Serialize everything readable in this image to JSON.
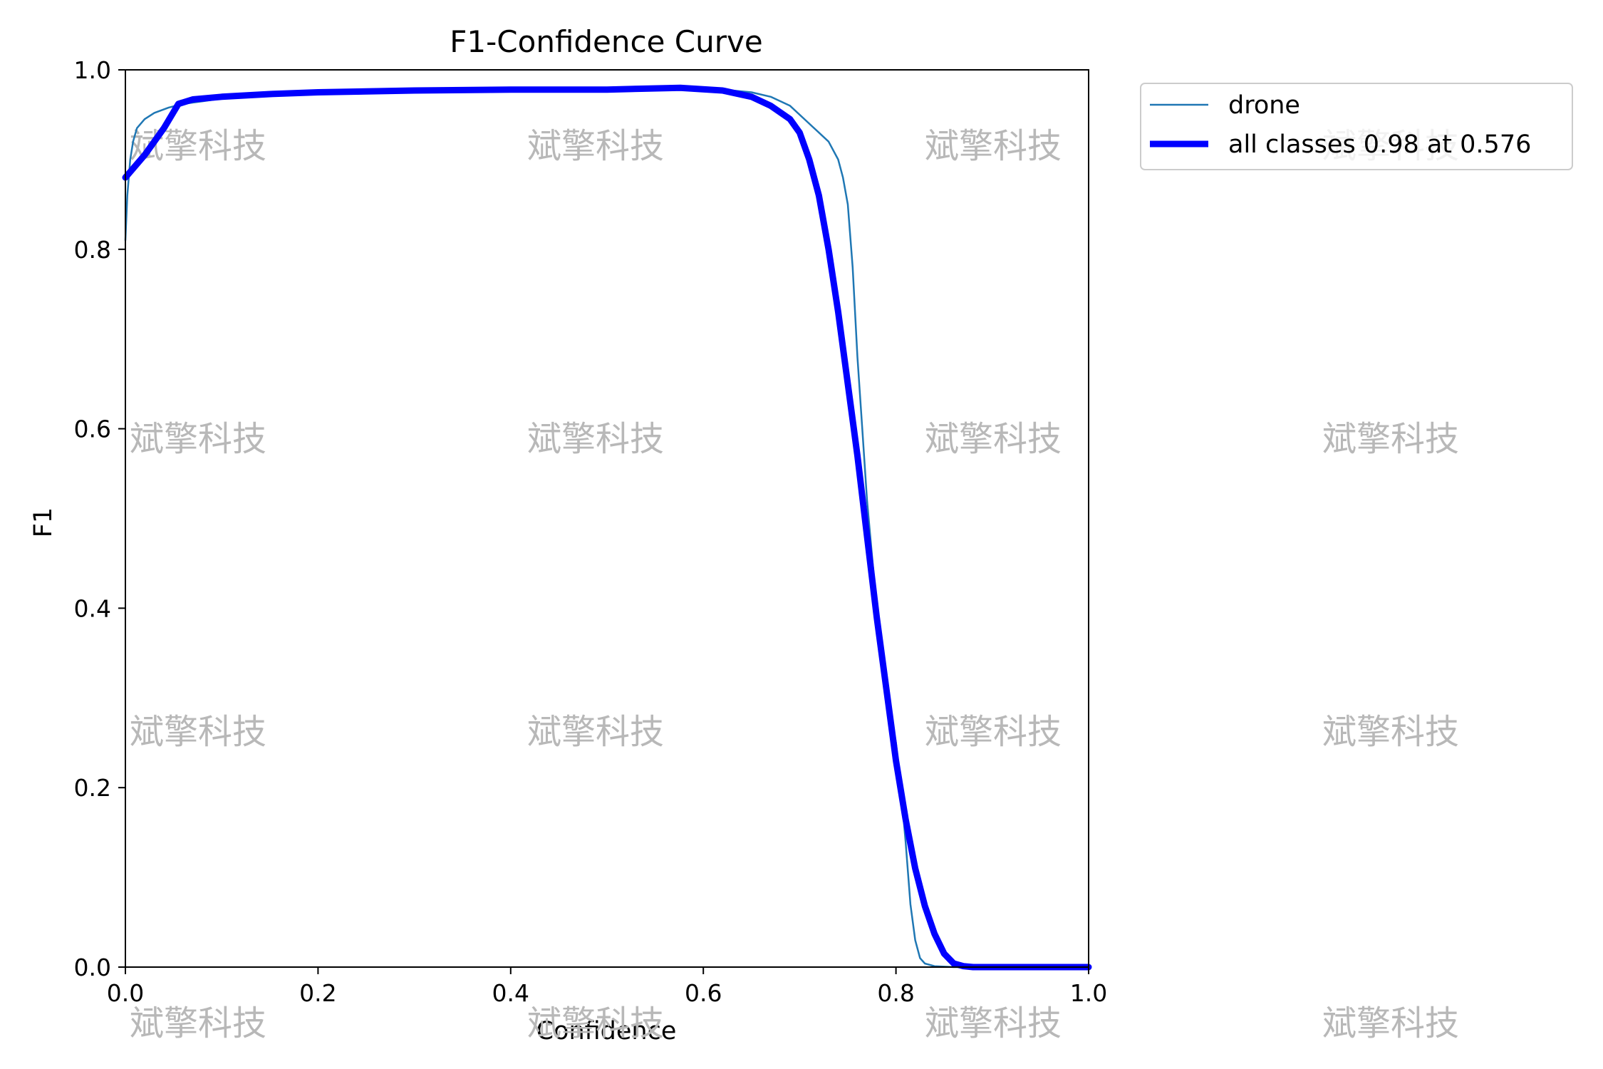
{
  "chart_data": {
    "type": "line",
    "title": "F1-Confidence Curve",
    "xlabel": "Confidence",
    "ylabel": "F1",
    "xlim": [
      0.0,
      1.0
    ],
    "ylim": [
      0.0,
      1.0
    ],
    "x_ticks": [
      "0.0",
      "0.2",
      "0.4",
      "0.6",
      "0.8",
      "1.0"
    ],
    "y_ticks": [
      "0.0",
      "0.2",
      "0.4",
      "0.6",
      "0.8",
      "1.0"
    ],
    "grid": false,
    "legend_position": "outside-top-right",
    "series": [
      {
        "name": "drone",
        "color": "#1f77b4",
        "style": "thin",
        "points": [
          [
            0.0,
            0.81
          ],
          [
            0.002,
            0.86
          ],
          [
            0.005,
            0.9
          ],
          [
            0.008,
            0.92
          ],
          [
            0.012,
            0.935
          ],
          [
            0.02,
            0.945
          ],
          [
            0.03,
            0.952
          ],
          [
            0.045,
            0.958
          ],
          [
            0.06,
            0.962
          ],
          [
            0.08,
            0.965
          ],
          [
            0.1,
            0.968
          ],
          [
            0.15,
            0.972
          ],
          [
            0.2,
            0.975
          ],
          [
            0.3,
            0.977
          ],
          [
            0.4,
            0.978
          ],
          [
            0.5,
            0.978
          ],
          [
            0.576,
            0.98
          ],
          [
            0.62,
            0.978
          ],
          [
            0.65,
            0.975
          ],
          [
            0.67,
            0.97
          ],
          [
            0.69,
            0.96
          ],
          [
            0.71,
            0.94
          ],
          [
            0.73,
            0.92
          ],
          [
            0.74,
            0.9
          ],
          [
            0.745,
            0.88
          ],
          [
            0.75,
            0.85
          ],
          [
            0.755,
            0.78
          ],
          [
            0.76,
            0.68
          ],
          [
            0.765,
            0.6
          ],
          [
            0.77,
            0.52
          ],
          [
            0.775,
            0.46
          ],
          [
            0.78,
            0.4
          ],
          [
            0.79,
            0.32
          ],
          [
            0.795,
            0.28
          ],
          [
            0.8,
            0.25
          ],
          [
            0.805,
            0.2
          ],
          [
            0.81,
            0.14
          ],
          [
            0.815,
            0.07
          ],
          [
            0.82,
            0.03
          ],
          [
            0.825,
            0.01
          ],
          [
            0.83,
            0.004
          ],
          [
            0.84,
            0.001
          ],
          [
            0.86,
            0.0
          ],
          [
            1.0,
            0.0
          ]
        ]
      },
      {
        "name": "all classes 0.98 at 0.576",
        "color": "#0000ff",
        "style": "thick",
        "points": [
          [
            0.0,
            0.88
          ],
          [
            0.02,
            0.905
          ],
          [
            0.04,
            0.935
          ],
          [
            0.055,
            0.962
          ],
          [
            0.07,
            0.967
          ],
          [
            0.1,
            0.97
          ],
          [
            0.15,
            0.973
          ],
          [
            0.2,
            0.975
          ],
          [
            0.3,
            0.977
          ],
          [
            0.4,
            0.978
          ],
          [
            0.5,
            0.978
          ],
          [
            0.576,
            0.98
          ],
          [
            0.62,
            0.977
          ],
          [
            0.65,
            0.97
          ],
          [
            0.67,
            0.96
          ],
          [
            0.69,
            0.945
          ],
          [
            0.7,
            0.93
          ],
          [
            0.71,
            0.9
          ],
          [
            0.72,
            0.86
          ],
          [
            0.73,
            0.8
          ],
          [
            0.74,
            0.73
          ],
          [
            0.75,
            0.65
          ],
          [
            0.76,
            0.57
          ],
          [
            0.77,
            0.48
          ],
          [
            0.78,
            0.39
          ],
          [
            0.79,
            0.31
          ],
          [
            0.8,
            0.23
          ],
          [
            0.81,
            0.165
          ],
          [
            0.82,
            0.11
          ],
          [
            0.83,
            0.068
          ],
          [
            0.84,
            0.037
          ],
          [
            0.85,
            0.015
          ],
          [
            0.86,
            0.004
          ],
          [
            0.87,
            0.001
          ],
          [
            0.88,
            0.0
          ],
          [
            1.0,
            0.0
          ]
        ]
      }
    ]
  },
  "watermark": {
    "text": "斌擎科技"
  }
}
